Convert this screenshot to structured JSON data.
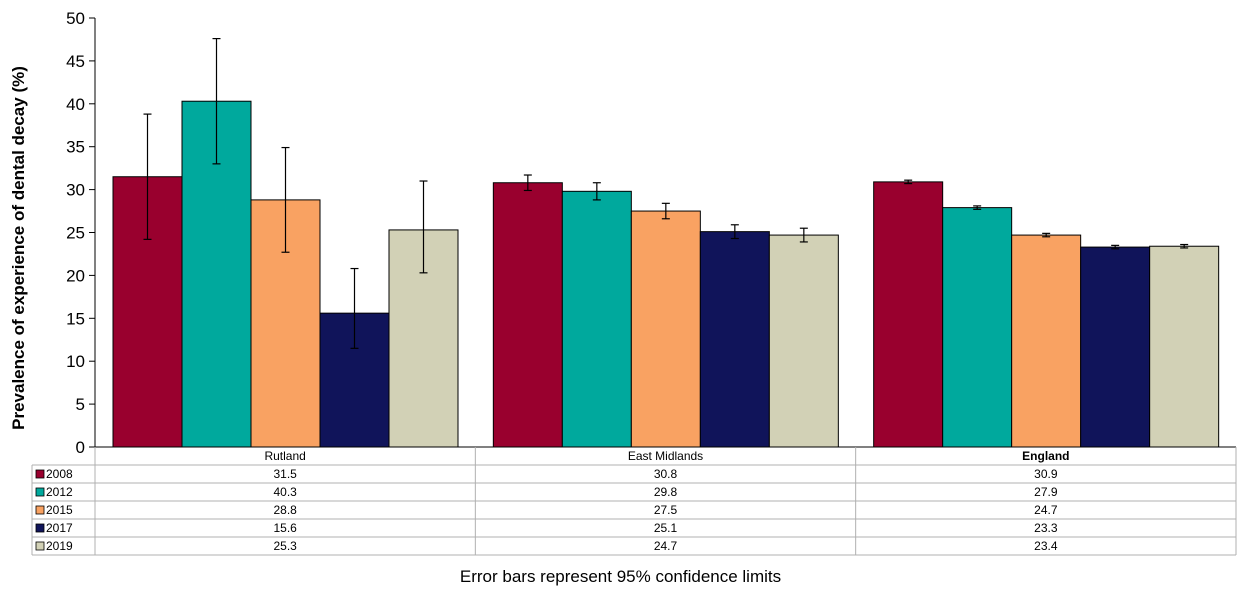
{
  "chart_data": {
    "type": "bar",
    "ylabel": "Prevalence of experience of dental decay (%)",
    "ylim": [
      0,
      50
    ],
    "yticks": [
      0,
      5,
      10,
      15,
      20,
      25,
      30,
      35,
      40,
      45,
      50
    ],
    "categories": [
      "Rutland",
      "East Midlands",
      "England"
    ],
    "category_bold": [
      false,
      false,
      true
    ],
    "series": [
      {
        "name": "2008",
        "color": "#99002e",
        "values": [
          31.5,
          30.8,
          30.9
        ],
        "ci_low": [
          24.2,
          29.9,
          30.7
        ],
        "ci_high": [
          38.8,
          31.7,
          31.1
        ]
      },
      {
        "name": "2012",
        "color": "#00a99d",
        "values": [
          40.3,
          29.8,
          27.9
        ],
        "ci_low": [
          33.0,
          28.8,
          27.7
        ],
        "ci_high": [
          47.6,
          30.8,
          28.1
        ]
      },
      {
        "name": "2015",
        "color": "#f9a262",
        "values": [
          28.8,
          27.5,
          24.7
        ],
        "ci_low": [
          22.7,
          26.6,
          24.5
        ],
        "ci_high": [
          34.9,
          28.4,
          24.9
        ]
      },
      {
        "name": "2017",
        "color": "#10145a",
        "values": [
          15.6,
          25.1,
          23.3
        ],
        "ci_low": [
          11.5,
          24.3,
          23.1
        ],
        "ci_high": [
          20.8,
          25.9,
          23.5
        ]
      },
      {
        "name": "2019",
        "color": "#d2d1b6",
        "values": [
          25.3,
          24.7,
          23.4
        ],
        "ci_low": [
          20.3,
          23.9,
          23.2
        ],
        "ci_high": [
          31.0,
          25.5,
          23.6
        ]
      }
    ],
    "data_table": true,
    "grid": false,
    "legend": "data-table-left"
  },
  "caption": "Error bars represent 95% confidence limits"
}
